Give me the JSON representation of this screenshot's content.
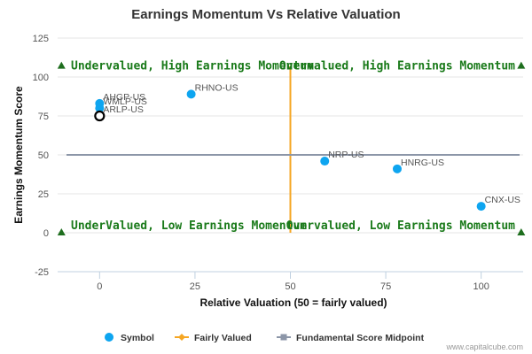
{
  "chart_data": {
    "type": "scatter",
    "title": "Earnings Momentum Vs Relative Valuation",
    "xlabel": "Relative Valuation (50 = fairly valued)",
    "ylabel": "Earnings Momentum Score",
    "xlim": [
      -11,
      111
    ],
    "ylim": [
      -25,
      125
    ],
    "x_ticks": [
      0,
      25,
      50,
      75,
      100
    ],
    "y_ticks": [
      -25,
      0,
      25,
      50,
      75,
      100,
      125
    ],
    "grid": "horizontal",
    "legend": "bottom-center",
    "colors": {
      "symbol": "#0ea5f0",
      "fairly_valued": "#f5a623",
      "midpoint": "#8c96a8",
      "quadrant_text": "#1a7a1a",
      "triangle": "#1e6e1e"
    },
    "points": [
      {
        "label": "AHGP-US",
        "x": 0,
        "y": 83,
        "highlight": false
      },
      {
        "label": "WMLP-US",
        "x": 0,
        "y": 80,
        "highlight": false
      },
      {
        "label": "ARLP-US",
        "x": 0,
        "y": 75,
        "highlight": true
      },
      {
        "label": "RHNO-US",
        "x": 24,
        "y": 89,
        "highlight": false
      },
      {
        "label": "NRP-US",
        "x": 59,
        "y": 46,
        "highlight": false
      },
      {
        "label": "HNRG-US",
        "x": 78,
        "y": 41,
        "highlight": false
      },
      {
        "label": "CNX-US",
        "x": 100,
        "y": 17,
        "highlight": false
      }
    ],
    "fairly_valued_x": 50,
    "midpoint_y": 50,
    "quadrants": {
      "top_left": "Undervalued, High Earnings Momentum",
      "top_right": "Overvalued, High Earnings Momentum",
      "bottom_left": "UnderValued, Low Earnings Momentum",
      "bottom_right": "Overvalued, Low Earnings Momentum"
    },
    "legend_items": [
      "Symbol",
      "Fairly Valued",
      "Fundamental Score Midpoint"
    ]
  },
  "credit": "www.capitalcube.com"
}
